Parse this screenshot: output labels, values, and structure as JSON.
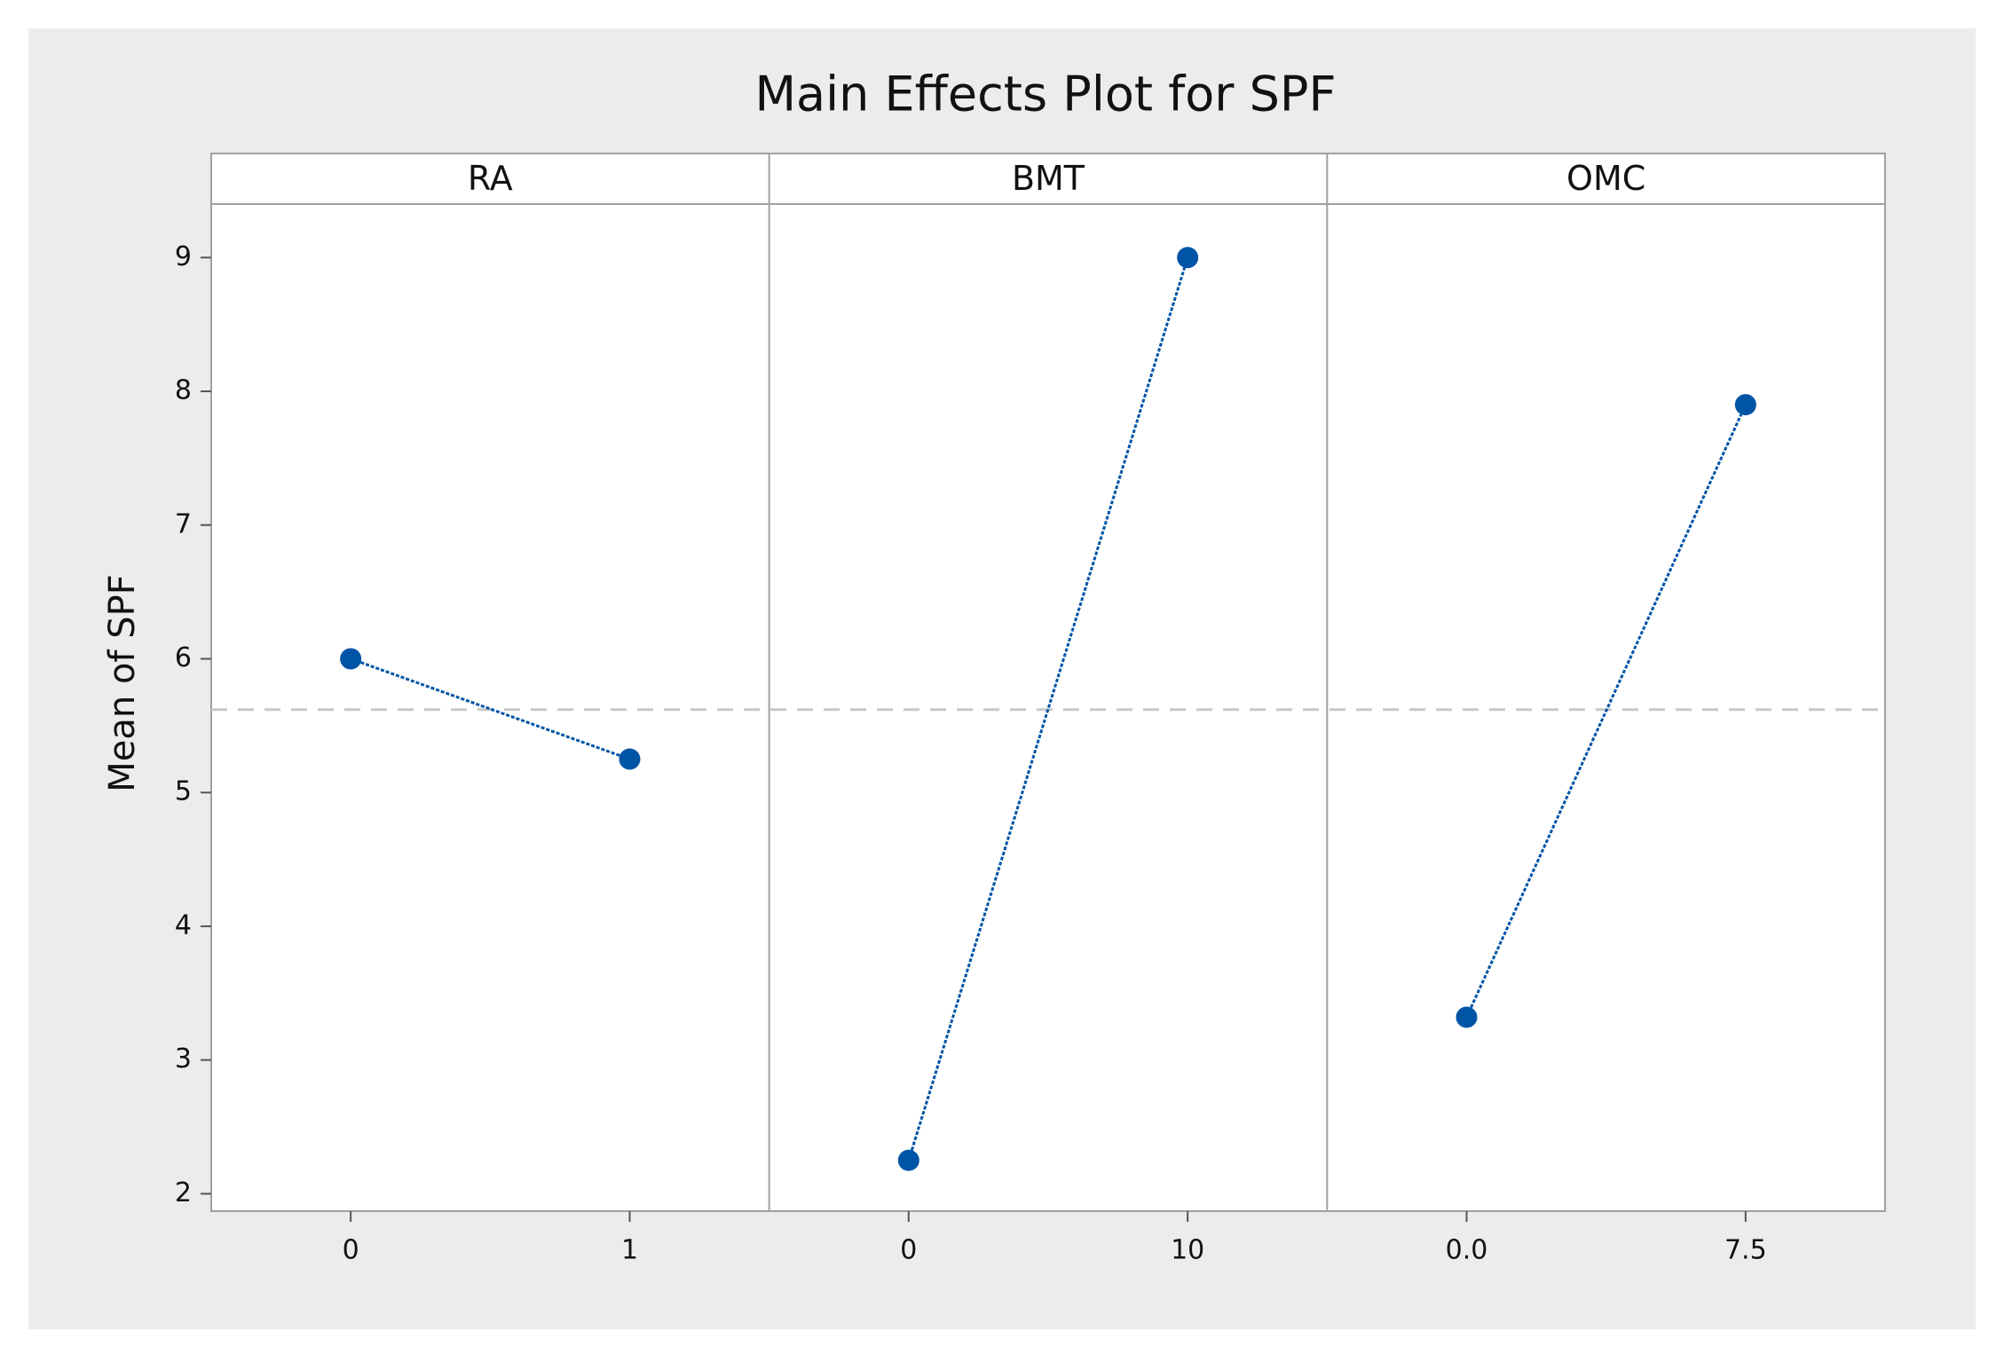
{
  "chart_data": {
    "type": "line",
    "title": "Main Effects Plot for SPF",
    "y_label": "Mean of SPF",
    "ylim": [
      1.87,
      9.4
    ],
    "yticks": [
      2,
      3,
      4,
      5,
      6,
      7,
      8,
      9
    ],
    "reference_line": 5.62,
    "color": "#0054a6",
    "panels": [
      {
        "name": "RA",
        "x": [
          0,
          1
        ],
        "values": [
          6.0,
          5.25
        ],
        "xlim": [
          -0.5,
          1.5
        ],
        "xticks": [
          0,
          1
        ]
      },
      {
        "name": "BMT",
        "x": [
          0,
          10
        ],
        "values": [
          2.25,
          9.0
        ],
        "xlim": [
          -5,
          15
        ],
        "xticks": [
          0,
          10
        ]
      },
      {
        "name": "OMC",
        "x": [
          0,
          7.5
        ],
        "values": [
          3.32,
          7.9
        ],
        "xlim": [
          -3.75,
          11.25
        ],
        "xticks": [
          {
            "value": 0,
            "label": "0.0"
          },
          7.5
        ]
      }
    ]
  }
}
